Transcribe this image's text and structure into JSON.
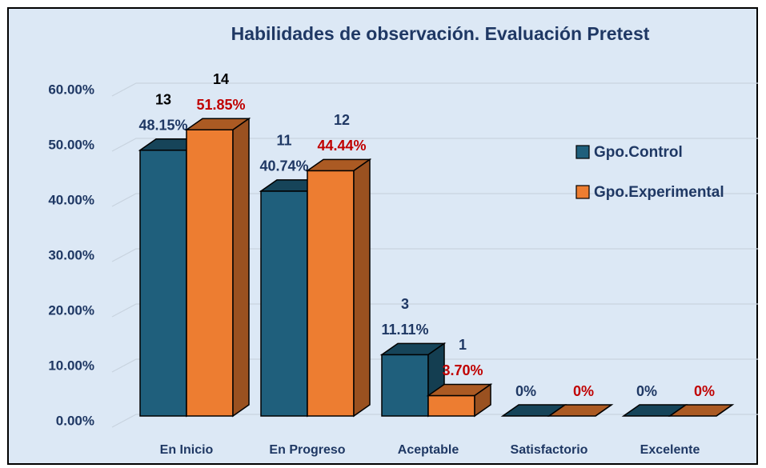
{
  "chart_data": {
    "type": "bar3d",
    "title": "Habilidades de observación. Evaluación Pretest",
    "categories": [
      "En Inicio",
      "En Progreso",
      "Aceptable",
      "Satisfactorio",
      "Excelente"
    ],
    "series": [
      {
        "name": "Gpo.Control",
        "color": "#1f5f7c",
        "values": [
          48.15,
          40.74,
          11.11,
          0,
          0
        ],
        "value_labels": [
          "48.15%",
          "40.74%",
          "11.11%",
          "0%",
          "0%"
        ],
        "counts": [
          13,
          11,
          3,
          null,
          null
        ],
        "label_color": "#1f3864"
      },
      {
        "name": "Gpo.Experimental",
        "color": "#ed7d31",
        "values": [
          51.85,
          44.44,
          3.7,
          0,
          0
        ],
        "value_labels": [
          "51.85%",
          "44.44%",
          "3.70%",
          "0%",
          "0%"
        ],
        "counts": [
          14,
          12,
          1,
          null,
          null
        ],
        "label_color": "#c00000"
      }
    ],
    "ylim": [
      0,
      60
    ],
    "yticks": [
      {
        "value": 0,
        "label": "0.00%"
      },
      {
        "value": 10,
        "label": "10.00%"
      },
      {
        "value": 20,
        "label": "20.00%"
      },
      {
        "value": 30,
        "label": "30.00%"
      },
      {
        "value": 40,
        "label": "40.00%"
      },
      {
        "value": 50,
        "label": "50.00%"
      },
      {
        "value": 60,
        "label": "60.00%"
      }
    ],
    "grid": true,
    "legend": "right"
  }
}
